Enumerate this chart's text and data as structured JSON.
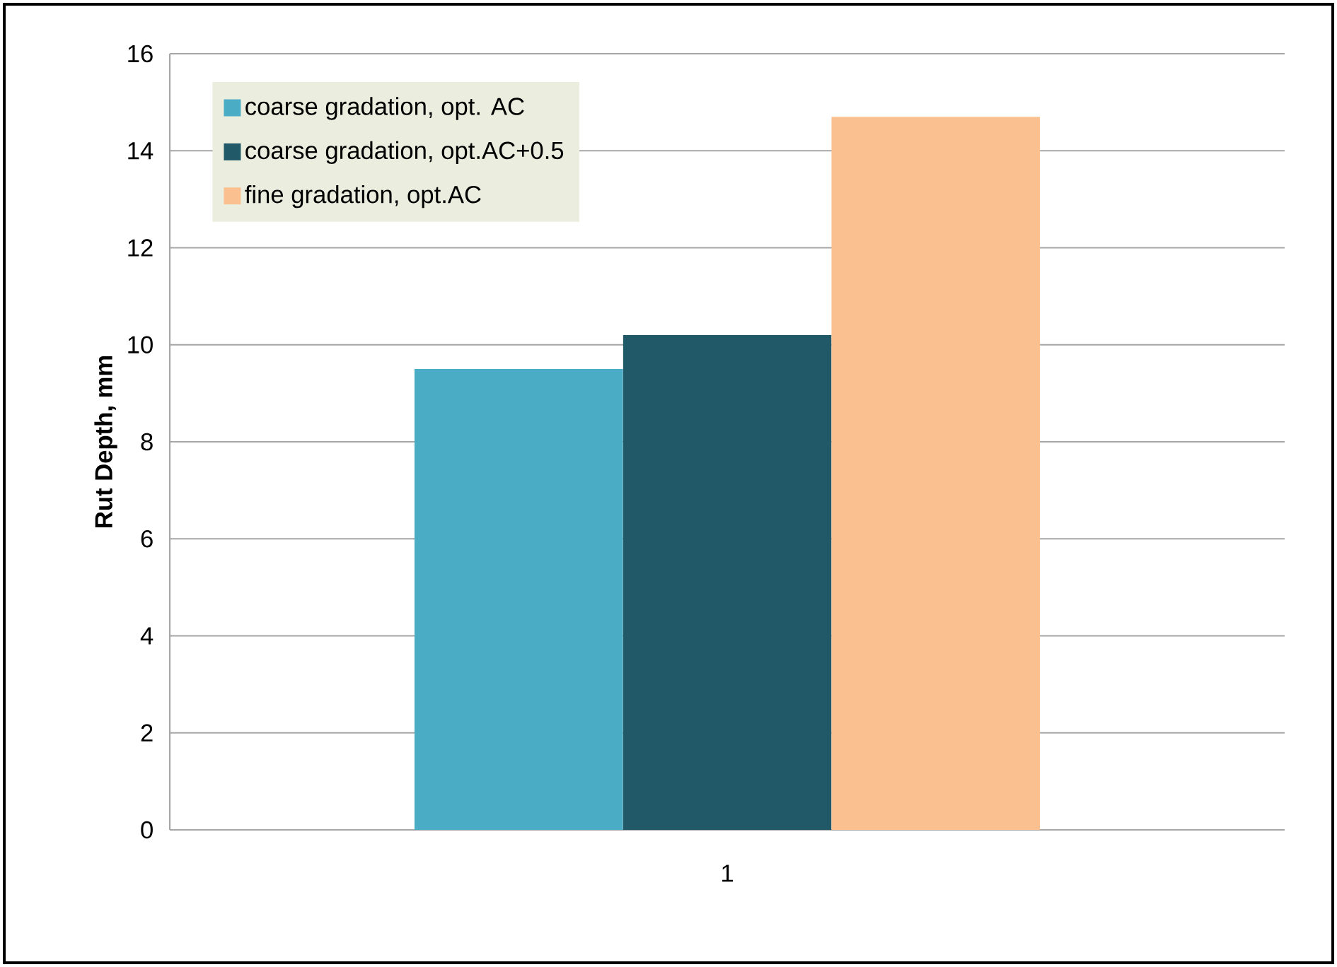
{
  "chart_data": {
    "type": "bar",
    "ylabel": "Rut Depth, mm",
    "categories": [
      "1"
    ],
    "series": [
      {
        "name": "coarse gradation, opt. AC",
        "color": "#4bacc6",
        "values": [
          9.5
        ]
      },
      {
        "name": "coarse gradation, opt.AC+0.5",
        "color": "#215968",
        "values": [
          10.2
        ]
      },
      {
        "name": "fine gradation, opt.AC",
        "color": "#fac090",
        "values": [
          14.7
        ]
      }
    ],
    "ylim": [
      0,
      16
    ],
    "yticks": [
      0,
      2,
      4,
      6,
      8,
      10,
      12,
      14,
      16
    ],
    "grid": "y",
    "legend": "top left"
  }
}
